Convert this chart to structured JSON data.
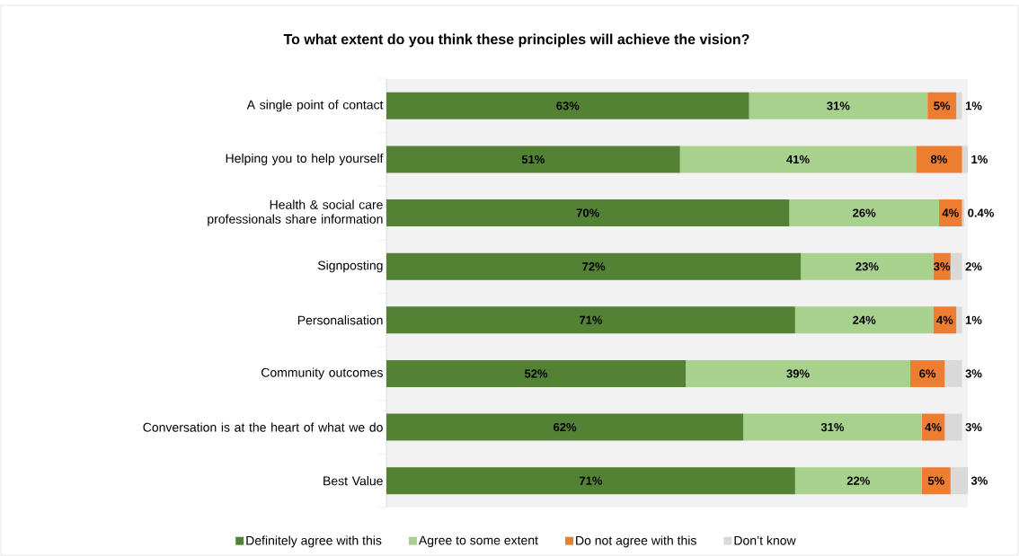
{
  "chart_data": {
    "type": "bar",
    "orientation": "horizontal",
    "stacked": true,
    "title": "To what extent do you think these principles will achieve the vision?",
    "categories": [
      "A single point of contact",
      "Helping you to help yourself",
      "Health & social care professionals share information",
      "Signposting",
      "Personalisation",
      "Community outcomes",
      "Conversation is at the heart of what we do",
      "Best Value"
    ],
    "series": [
      {
        "name": "Definitely agree with this",
        "color": "#548235",
        "values": [
          63,
          51,
          70,
          72,
          71,
          52,
          62,
          71
        ],
        "value_labels": [
          "63%",
          "51%",
          "70%",
          "72%",
          "71%",
          "52%",
          "62%",
          "71%"
        ]
      },
      {
        "name": "Agree to some extent",
        "color": "#a9d18e",
        "values": [
          31,
          41,
          26,
          23,
          24,
          39,
          31,
          22
        ],
        "value_labels": [
          "31%",
          "41%",
          "26%",
          "23%",
          "24%",
          "39%",
          "31%",
          "22%"
        ]
      },
      {
        "name": "Do not agree with this",
        "color": "#ed7d31",
        "values": [
          5,
          8,
          4,
          3,
          4,
          6,
          4,
          5
        ],
        "value_labels": [
          "5%",
          "8%",
          "4%",
          "3%",
          "4%",
          "6%",
          "4%",
          "5%"
        ]
      },
      {
        "name": "Don’t know",
        "color": "#d9d9d9",
        "values": [
          1,
          1,
          0.4,
          2,
          1,
          3,
          3,
          3
        ],
        "value_labels": [
          "1%",
          "1%",
          "0.4%",
          "2%",
          "1%",
          "3%",
          "3%",
          "3%"
        ]
      }
    ],
    "xlim": [
      0,
      101
    ],
    "tick_labels": "y",
    "legend": "bottom"
  }
}
